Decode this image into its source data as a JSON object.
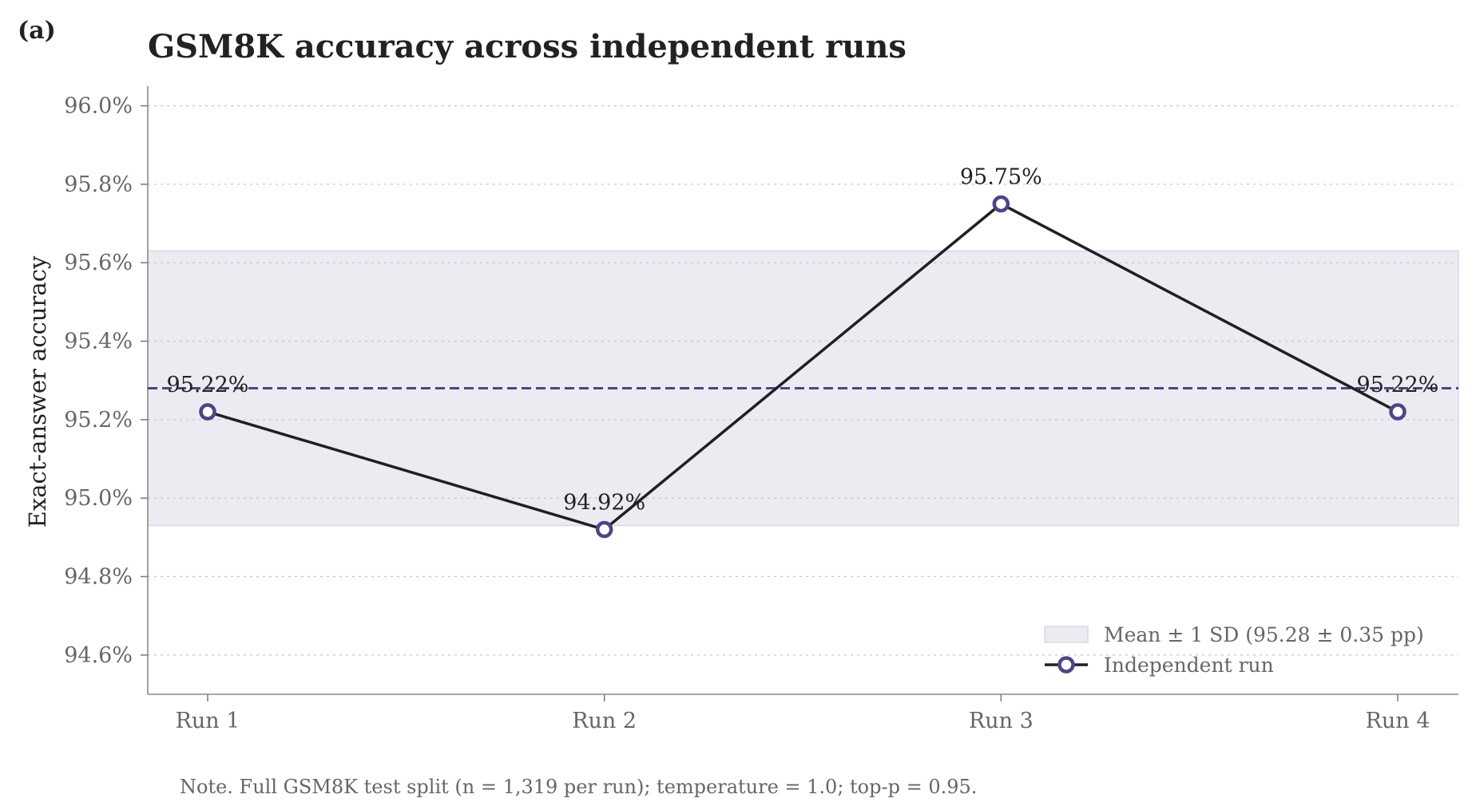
{
  "panel_label": "(a)",
  "chart_data": {
    "type": "line",
    "title": "GSM8K accuracy across independent runs",
    "xlabel": "",
    "ylabel": "Exact-answer accuracy",
    "categories": [
      "Run 1",
      "Run 2",
      "Run 3",
      "Run 4"
    ],
    "series": [
      {
        "name": "Independent run",
        "values": [
          95.22,
          94.92,
          95.75,
          95.22
        ],
        "labels": [
          "95.22%",
          "94.92%",
          "95.75%",
          "95.22%"
        ],
        "color": "#1f1f24",
        "marker_color": "#4e4485"
      }
    ],
    "mean": 95.28,
    "sd": 0.35,
    "band_label": "Mean ± 1 SD (95.28 ± 0.35 pp)",
    "band_color": "#ecebf2",
    "mean_line_color": "#4e4485",
    "ylim": [
      94.5,
      96.05
    ],
    "yticks": [
      94.6,
      94.8,
      95.0,
      95.2,
      95.4,
      95.6,
      95.8,
      96.0
    ],
    "ytick_labels": [
      "94.6%",
      "94.8%",
      "95.0%",
      "95.2%",
      "95.4%",
      "95.6%",
      "95.8%",
      "96.0%"
    ],
    "grid": "horizontal dotted",
    "legend_position": "lower-right"
  },
  "note": "Note. Full GSM8K test split (n = 1,319 per run); temperature = 1.0; top-p = 0.95."
}
